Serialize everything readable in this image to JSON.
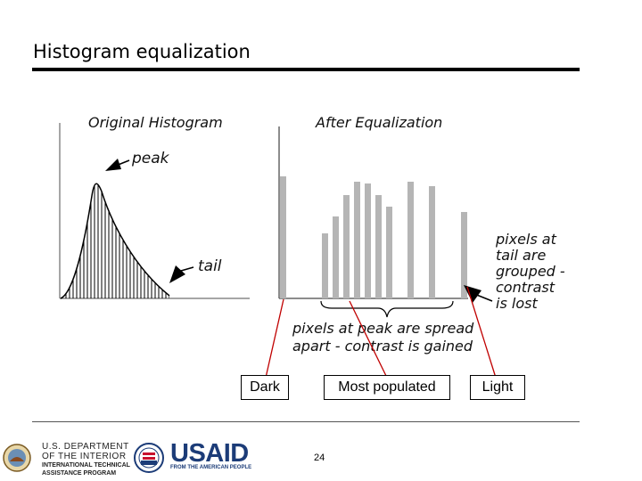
{
  "slide": {
    "title": "Histogram equalization",
    "page_number": "24"
  },
  "figure": {
    "original_title": "Original Histogram",
    "after_title": "After Equalization",
    "peak_label": "peak",
    "tail_label": "tail",
    "tail_note_lines": [
      "pixels at",
      "tail are",
      "grouped -",
      "contrast",
      "is lost"
    ],
    "peak_note_lines": [
      "pixels at peak are spread",
      "apart - contrast is gained"
    ]
  },
  "callouts": {
    "dark": "Dark",
    "most_populated": "Most populated",
    "light": "Light"
  },
  "logos": {
    "doi_line1": "U.S. DEPARTMENT",
    "doi_line2": "OF THE INTERIOR",
    "doi_line3": "INTERNATIONAL TECHNICAL",
    "doi_line4": "ASSISTANCE PROGRAM",
    "usaid_word": "USAID",
    "usaid_tagline": "FROM THE AMERICAN PEOPLE"
  },
  "colors": {
    "bar_gray": "#b5b5b5",
    "arrow_red": "#c00000",
    "usaid_blue": "#1c3c78"
  }
}
